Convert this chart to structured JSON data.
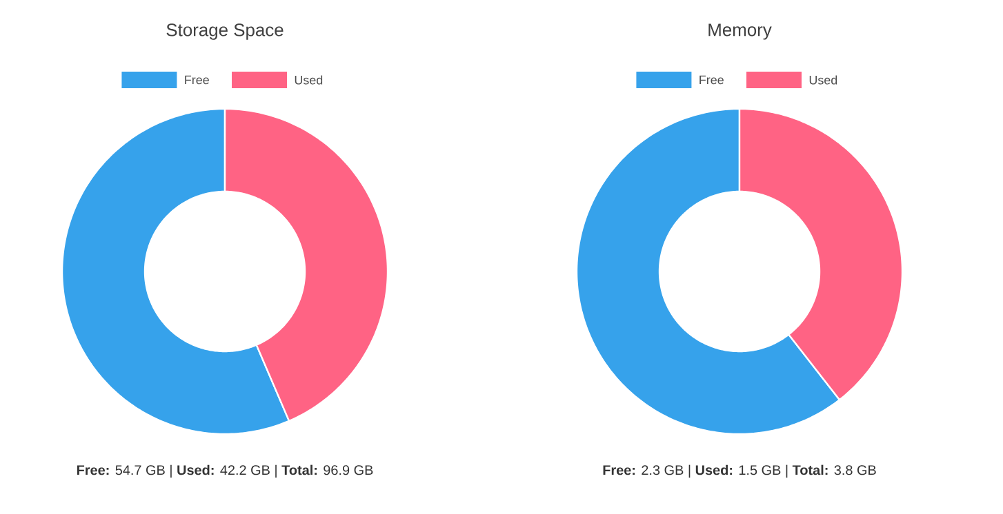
{
  "chart_data": [
    {
      "type": "donut",
      "title": "Storage Space",
      "categories": [
        "Free",
        "Used"
      ],
      "values": [
        56.45,
        43.55
      ],
      "colors": [
        "#36a2eb",
        "#ff6384"
      ],
      "legend": "top",
      "annotations": [
        "**Free:** 54.7 GB | **Used:** 42.2 GB | **Total:** 96.9 GB"
      ]
    },
    {
      "type": "donut",
      "title": "Memory",
      "categories": [
        "Free",
        "Used"
      ],
      "values": [
        60.53,
        39.47
      ],
      "colors": [
        "#36a2eb",
        "#ff6384"
      ],
      "legend": "top",
      "annotations": [
        "**Free:** 2.3 GB | **Used:** 1.5 GB | **Total:** 3.8 GB"
      ]
    }
  ]
}
